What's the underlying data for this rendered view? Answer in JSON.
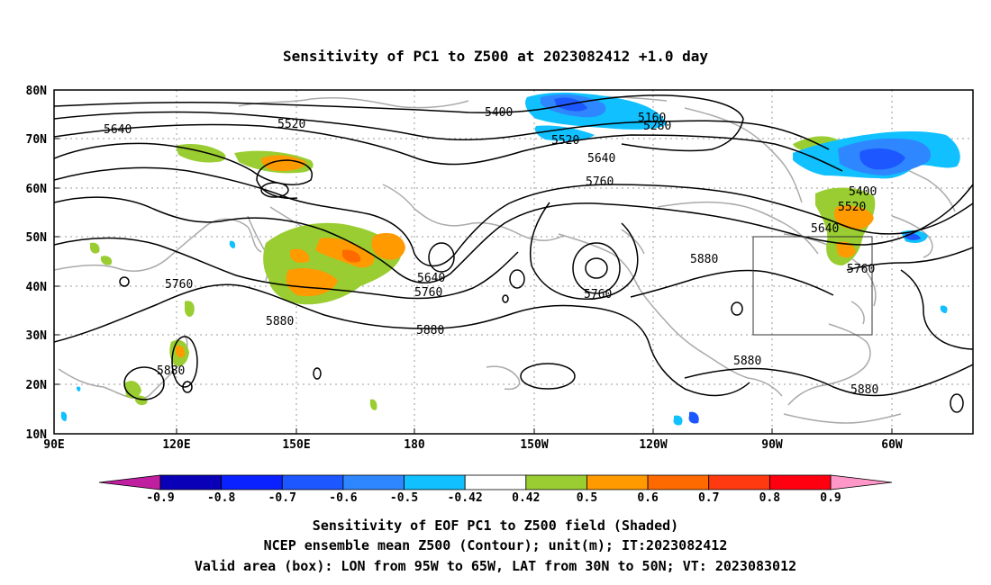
{
  "title": "Sensitivity of PC1 to Z500 at 2023082412 +1.0 day",
  "lat_labels": [
    "80N",
    "70N",
    "60N",
    "50N",
    "40N",
    "30N",
    "20N",
    "10N"
  ],
  "lon_labels": [
    "90E",
    "120E",
    "150E",
    "180",
    "150W",
    "120W",
    "90W",
    "60W"
  ],
  "contour_labels": [
    "5400",
    "5160",
    "5280",
    "5520",
    "5640",
    "5520",
    "5640",
    "5760",
    "5400",
    "5520",
    "5640",
    "5760",
    "5760",
    "5640",
    "5760",
    "5760",
    "5880",
    "5880",
    "5880",
    "5880",
    "5880",
    "5880"
  ],
  "colorbar": {
    "labels": [
      "-0.9",
      "-0.8",
      "-0.7",
      "-0.6",
      "-0.5",
      "-0.42",
      "0.42",
      "0.5",
      "0.6",
      "0.7",
      "0.8",
      "0.9"
    ],
    "colors": [
      "#0a00b8",
      "#0a22ff",
      "#1c57ff",
      "#2f87ff",
      "#10c0ff",
      "#ffffff",
      "#9acd32",
      "#ff9a00",
      "#ff6a00",
      "#ff3a10",
      "#ff0010"
    ],
    "low_end_color": "#c020a0",
    "high_end_color": "#ff98c8"
  },
  "footer": {
    "line1": "Sensitivity of EOF PC1 to Z500 field (Shaded)",
    "line2": "NCEP ensemble mean Z500 (Contour); unit(m); IT:2023082412",
    "line3": "Valid area (box): LON from 95W to 65W, LAT from 30N to 50N; VT: 2023083012"
  }
}
